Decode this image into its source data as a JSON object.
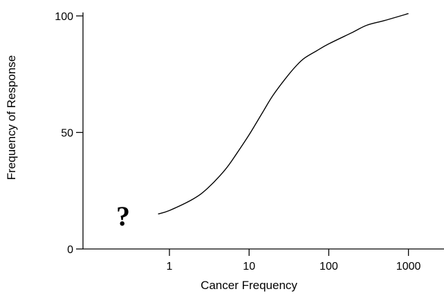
{
  "chart_data": {
    "type": "line",
    "xscale": "log",
    "xlabel": "Cancer Frequency",
    "ylabel": "Frequency of Response",
    "xticks": [
      1,
      10,
      100,
      1000
    ],
    "x_tick_labels": [
      "1",
      "10",
      "100",
      "1000"
    ],
    "yticks": [
      0,
      50,
      100
    ],
    "y_tick_labels": [
      "0",
      "50",
      "100"
    ],
    "ylim": [
      0,
      100
    ],
    "series": [
      {
        "x": [
          0.72,
          1,
          2,
          3,
          5,
          7,
          10,
          15,
          20,
          30,
          40,
          50,
          70,
          100,
          200,
          300,
          500,
          1000
        ],
        "y": [
          15,
          16.5,
          21.5,
          26,
          34,
          41,
          49,
          59,
          66,
          74,
          79,
          82,
          85,
          88,
          93,
          96,
          98,
          101
        ]
      }
    ],
    "annotation": "?",
    "grid": false
  }
}
